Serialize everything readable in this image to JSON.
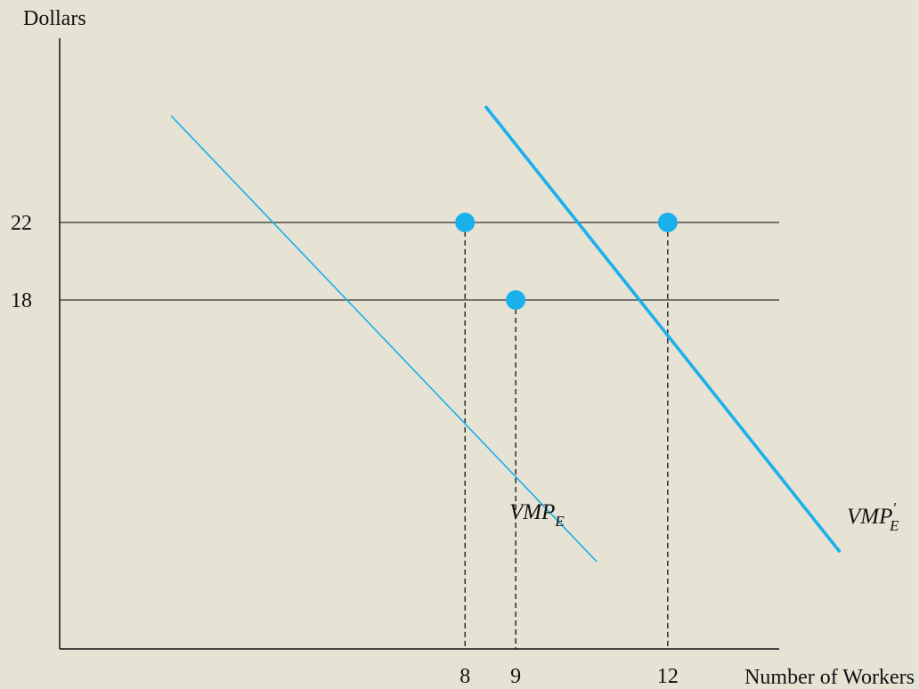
{
  "chart_data": {
    "type": "line",
    "title": "",
    "xlabel": "Number of Workers",
    "ylabel": "Dollars",
    "xlim": [
      0,
      14.2
    ],
    "ylim": [
      0,
      31.5
    ],
    "x_ticks": [
      8,
      9,
      12
    ],
    "y_ticks": [
      18,
      22
    ],
    "grid": false,
    "reference_lines": [
      {
        "y": 22
      },
      {
        "y": 18
      }
    ],
    "series": [
      {
        "name": "VMP_E",
        "label_main": "VMP",
        "label_sub": "E",
        "color": "#1ab0ec",
        "points": [
          [
            2.2,
            27.5
          ],
          [
            10.6,
            4.5
          ]
        ]
      },
      {
        "name": "VMP_E'",
        "label_main": "VMP",
        "label_sub": "E",
        "label_prime": "′",
        "color": "#1ab0ec",
        "points": [
          [
            8.4,
            28.0
          ],
          [
            15.4,
            5.0
          ]
        ]
      }
    ],
    "markers": [
      {
        "x": 8,
        "y": 22
      },
      {
        "x": 9,
        "y": 18
      },
      {
        "x": 12,
        "y": 22
      }
    ]
  }
}
